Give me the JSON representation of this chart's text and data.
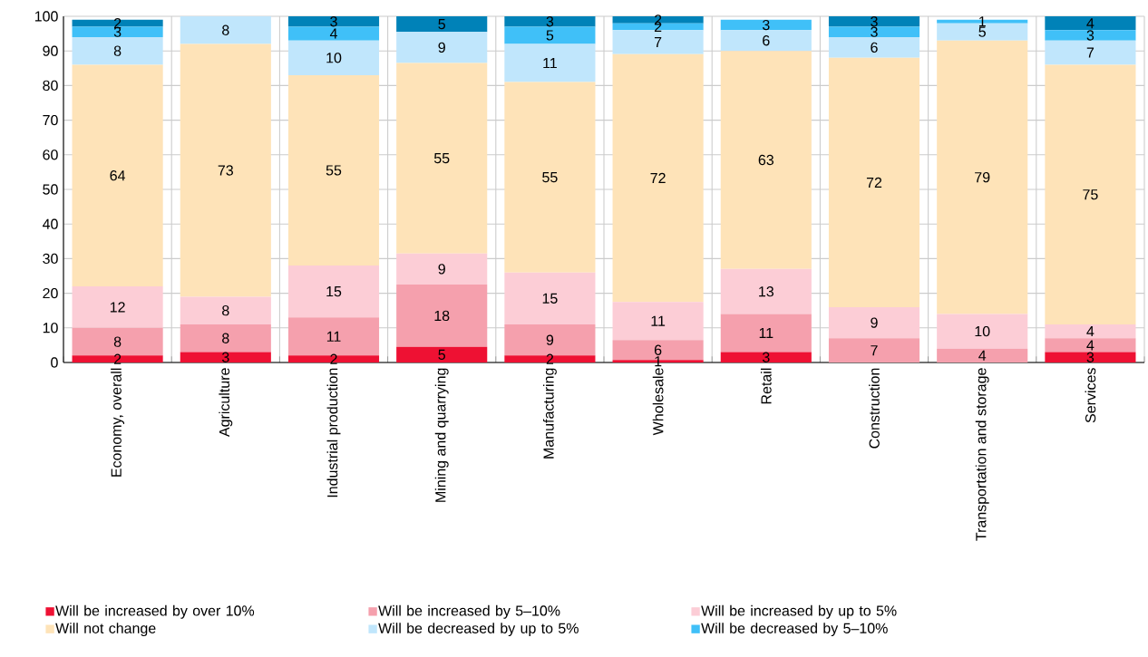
{
  "chart_data": {
    "type": "bar",
    "stacked": true,
    "grid": true,
    "legend": "bottom",
    "categories": [
      "Economy, overall",
      "Agriculture",
      "Industrial production",
      "Mining and quarrying",
      "Manufacturing",
      "Wholesale",
      "Retail",
      "Construction",
      "Transportation and storage",
      "Services"
    ],
    "ylim": [
      0,
      100
    ],
    "yticks": [
      0,
      10,
      20,
      30,
      40,
      50,
      60,
      70,
      80,
      90,
      100
    ],
    "series": [
      {
        "name": "Will be increased by over 10%",
        "color": "#ee1133",
        "values": [
          2,
          3,
          2,
          4.5,
          2,
          0.7,
          3,
          null,
          null,
          3
        ],
        "value_labels": [
          "2",
          "3",
          "2",
          "5",
          "2",
          "1",
          "3",
          null,
          null,
          "3"
        ]
      },
      {
        "name": "Will be increased by 5–10%",
        "color": "#f5a0ad",
        "values": [
          8,
          8,
          11,
          18,
          9,
          5.8,
          11,
          7,
          4,
          4
        ],
        "value_labels": [
          "8",
          "8",
          "11",
          "18",
          "9",
          "6",
          "11",
          "7",
          "4",
          "4"
        ]
      },
      {
        "name": "Will be increased by up to 5%",
        "color": "#fccdd6",
        "values": [
          12,
          8,
          15,
          9,
          15,
          11,
          13,
          9,
          10,
          4
        ],
        "value_labels": [
          "12",
          "8",
          "15",
          "9",
          "15",
          "11",
          "13",
          "9",
          "10",
          "4"
        ]
      },
      {
        "name": "Will not change",
        "color": "#fee3b8",
        "values": [
          64,
          73,
          55,
          55,
          55,
          71.6,
          63,
          72,
          79,
          75
        ],
        "value_labels": [
          "64",
          "73",
          "55",
          "55",
          "55",
          "72",
          "63",
          "72",
          "79",
          "75"
        ]
      },
      {
        "name": "Will be decreased by up to 5%",
        "color": "#c0e6fc",
        "values": [
          8,
          8,
          10,
          9,
          11,
          6.9,
          6,
          6,
          5,
          7
        ],
        "value_labels": [
          "8",
          "8",
          "10",
          "9",
          "11",
          "7",
          "6",
          "6",
          "5",
          "7"
        ]
      },
      {
        "name": "Will be decreased by 5–10%",
        "color": "#40c0f8",
        "values": [
          3,
          null,
          4,
          null,
          5,
          2,
          3,
          3,
          1,
          3
        ],
        "value_labels": [
          "3",
          null,
          "4",
          null,
          "5",
          "2",
          "3",
          "3",
          "1",
          "3"
        ]
      },
      {
        "color": "#0082b8",
        "values": [
          2,
          null,
          3,
          4.5,
          3,
          2,
          null,
          3,
          null,
          4
        ],
        "value_labels": [
          "2",
          null,
          "3",
          "5",
          "3",
          "2",
          null,
          "3",
          null,
          "4"
        ]
      }
    ]
  }
}
